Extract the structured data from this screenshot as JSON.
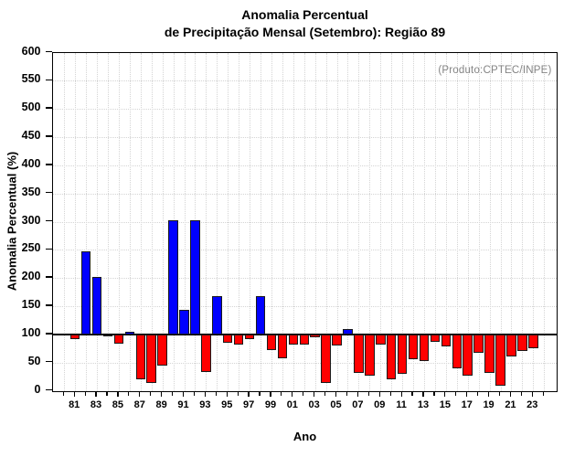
{
  "header": {
    "title_line1": "Anomalia Percentual",
    "title_line2": "de Precipitação Mensal (Setembro): Região 89"
  },
  "annotation": {
    "source_label": "(Produto:CPTEC/INPE)"
  },
  "axes": {
    "x_title": "Ano",
    "y_title": "Anomalia Percentual (%)"
  },
  "chart_data": {
    "type": "bar",
    "title": "Anomalia Percentual de Precipitação Mensal (Setembro): Região 89",
    "xlabel": "Ano",
    "ylabel": "Anomalia Percentual (%)",
    "ylim": [
      0,
      600
    ],
    "ytick_step": 50,
    "baseline": 100,
    "grid": true,
    "legend": "none",
    "color_above_baseline": "#0000ff",
    "color_below_baseline": "#ff0000",
    "categories": [
      "81",
      "82",
      "83",
      "84",
      "85",
      "86",
      "87",
      "88",
      "89",
      "90",
      "91",
      "92",
      "93",
      "94",
      "95",
      "96",
      "97",
      "98",
      "99",
      "00",
      "01",
      "02",
      "03",
      "04",
      "05",
      "06",
      "07",
      "08",
      "09",
      "10",
      "11",
      "12",
      "13",
      "14",
      "15",
      "16",
      "17",
      "18",
      "19",
      "20",
      "21",
      "22",
      "23"
    ],
    "values": [
      92,
      248,
      202,
      97,
      84,
      104,
      21,
      14,
      45,
      303,
      143,
      303,
      34,
      168,
      85,
      82,
      92,
      168,
      72,
      58,
      82,
      82,
      95,
      13,
      81,
      109,
      32,
      26,
      82,
      20,
      30,
      56,
      53,
      86,
      78,
      40,
      27,
      67,
      32,
      9,
      61,
      70,
      75
    ],
    "xtick_labeled_years": [
      "81",
      "83",
      "85",
      "87",
      "89",
      "91",
      "93",
      "95",
      "97",
      "99",
      "01",
      "03",
      "05",
      "07",
      "09",
      "11",
      "13",
      "15",
      "17",
      "19",
      "21",
      "23"
    ]
  }
}
